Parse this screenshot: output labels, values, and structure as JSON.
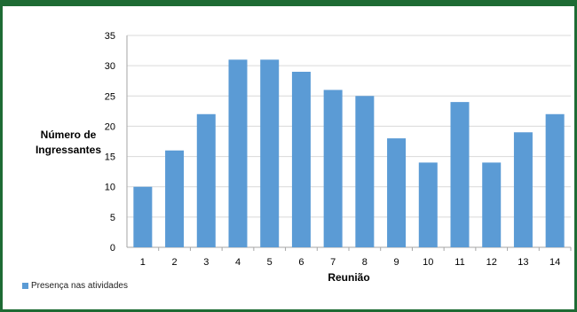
{
  "colors": {
    "bar": "#5b9bd5",
    "frame": "#1e6b34",
    "grid": "#d9d9d9"
  },
  "chart_data": {
    "type": "bar",
    "categories": [
      "1",
      "2",
      "3",
      "4",
      "5",
      "6",
      "7",
      "8",
      "9",
      "10",
      "11",
      "12",
      "13",
      "14"
    ],
    "series": [
      {
        "name": "Presença nas atividades",
        "values": [
          10,
          16,
          22,
          31,
          31,
          29,
          26,
          25,
          18,
          14,
          24,
          14,
          19,
          22
        ]
      }
    ],
    "title": "",
    "xlabel": "Reunião",
    "ylabel_line1": "Número de",
    "ylabel_line2": "Ingressantes",
    "ylim": [
      0,
      35
    ],
    "yticks": [
      0,
      5,
      10,
      15,
      20,
      25,
      30,
      35
    ],
    "grid": true,
    "legend_position": "bottom-left"
  }
}
